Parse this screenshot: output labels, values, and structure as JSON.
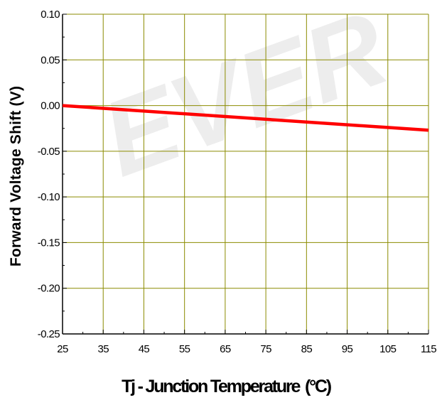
{
  "watermark": "EVER",
  "chart_data": {
    "type": "line",
    "title": "",
    "xlabel": "Tj - Junction Temperature",
    "xlabel_unit": "(°C)",
    "ylabel": "Forward Voltage Shift (V)",
    "xlim": [
      25,
      115
    ],
    "ylim": [
      -0.25,
      0.1
    ],
    "x_ticks": [
      "25",
      "35",
      "45",
      "55",
      "65",
      "75",
      "85",
      "95",
      "105",
      "115"
    ],
    "y_ticks": [
      "0.10",
      "0.05",
      "0.00",
      "-0.05",
      "-0.10",
      "-0.15",
      "-0.20",
      "-0.25"
    ],
    "grid": true,
    "grid_color": "#8b8b00",
    "line_color": "#ff0000",
    "series": [
      {
        "x": [
          25,
          115
        ],
        "y": [
          0.0,
          -0.027
        ]
      }
    ]
  }
}
